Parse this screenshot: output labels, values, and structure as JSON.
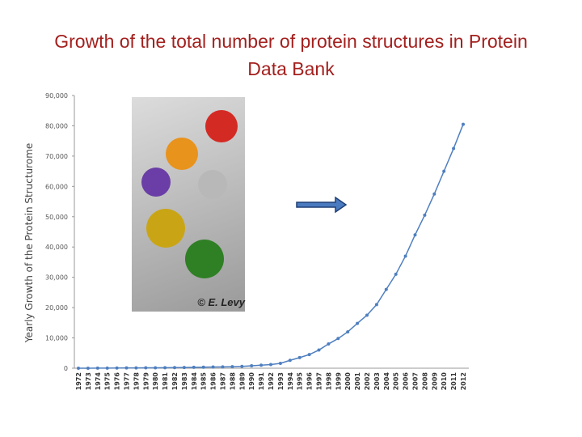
{
  "chart_data": {
    "type": "line",
    "title": "Growth of the total number of protein structures in Protein Data Bank",
    "y_label": "Yearly Growth of the Protein Structurome",
    "image_caption": "© E. Levy",
    "categories": [
      "1972",
      "1973",
      "1974",
      "1975",
      "1976",
      "1977",
      "1978",
      "1979",
      "1980",
      "1981",
      "1982",
      "1983",
      "1984",
      "1985",
      "1986",
      "1987",
      "1988",
      "1989",
      "1990",
      "1991",
      "1992",
      "1993",
      "1994",
      "1995",
      "1996",
      "1997",
      "1998",
      "1999",
      "2000",
      "2001",
      "2002",
      "2003",
      "2004",
      "2005",
      "2006",
      "2007",
      "2008",
      "2009",
      "2010",
      "2011",
      "2012"
    ],
    "values": [
      13,
      14,
      30,
      45,
      70,
      90,
      110,
      130,
      150,
      170,
      200,
      250,
      300,
      350,
      400,
      450,
      500,
      600,
      800,
      1000,
      1200,
      1600,
      2600,
      3500,
      4500,
      6000,
      8000,
      9800,
      12000,
      14800,
      17500,
      21000,
      26000,
      31000,
      37000,
      44000,
      50500,
      57500,
      65000,
      72500,
      80500
    ],
    "color": "#4f7fbf",
    "ylim": [
      0,
      90000
    ],
    "yticks": [
      0,
      {
        "value": 10000,
        "label": "10,000"
      },
      {
        "value": 20000,
        "label": "20,000"
      },
      {
        "value": 30000,
        "label": "30,000"
      },
      {
        "value": 40000,
        "label": "40,000"
      },
      {
        "value": 50000,
        "label": "50,000"
      },
      {
        "value": 60000,
        "label": "60,000"
      },
      {
        "value": 70000,
        "label": "70,000"
      },
      {
        "value": 80000,
        "label": "80,000"
      },
      {
        "value": 90000,
        "label": "90,000"
      }
    ],
    "grid": false
  }
}
